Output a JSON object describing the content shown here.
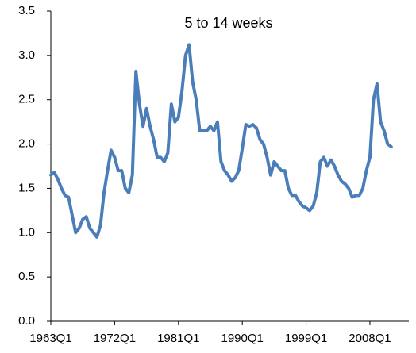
{
  "chart_data": {
    "type": "line",
    "title": "5 to 14 weeks",
    "x": [
      1963,
      1963.5,
      1964,
      1964.5,
      1965,
      1965.5,
      1966,
      1966.5,
      1967,
      1967.5,
      1968,
      1968.5,
      1969,
      1969.5,
      1970,
      1970.5,
      1971,
      1971.5,
      1972,
      1972.5,
      1973,
      1973.5,
      1974,
      1974.5,
      1975,
      1975.5,
      1976,
      1976.5,
      1977,
      1977.5,
      1978,
      1978.5,
      1979,
      1979.5,
      1980,
      1980.5,
      1981,
      1981.5,
      1982,
      1982.5,
      1983,
      1983.5,
      1984,
      1984.5,
      1985,
      1985.5,
      1986,
      1986.5,
      1987,
      1987.5,
      1988,
      1988.5,
      1989,
      1989.5,
      1990,
      1990.5,
      1991,
      1991.5,
      1992,
      1992.5,
      1993,
      1993.5,
      1994,
      1994.5,
      1995,
      1995.5,
      1996,
      1996.5,
      1997,
      1997.5,
      1998,
      1998.5,
      1999,
      1999.5,
      2000,
      2000.5,
      2001,
      2001.5,
      2002,
      2002.5,
      2003,
      2003.5,
      2004,
      2004.5,
      2005,
      2005.5,
      2006,
      2006.5,
      2007,
      2007.5,
      2008,
      2008.5,
      2009,
      2009.5,
      2010,
      2010.5,
      2011
    ],
    "series": [
      {
        "color": "#4a7ebb",
        "values": [
          1.65,
          1.68,
          1.6,
          1.5,
          1.42,
          1.4,
          1.2,
          1.0,
          1.05,
          1.15,
          1.18,
          1.05,
          1.0,
          0.95,
          1.08,
          1.45,
          1.7,
          1.93,
          1.85,
          1.7,
          1.7,
          1.5,
          1.45,
          1.65,
          2.82,
          2.45,
          2.2,
          2.4,
          2.2,
          2.05,
          1.85,
          1.85,
          1.8,
          1.9,
          2.45,
          2.25,
          2.3,
          2.6,
          3.0,
          3.12,
          2.7,
          2.5,
          2.15,
          2.15,
          2.15,
          2.2,
          2.15,
          2.25,
          1.8,
          1.7,
          1.65,
          1.58,
          1.62,
          1.7,
          1.95,
          2.22,
          2.2,
          2.22,
          2.18,
          2.05,
          2.0,
          1.85,
          1.65,
          1.8,
          1.75,
          1.7,
          1.7,
          1.5,
          1.42,
          1.42,
          1.35,
          1.3,
          1.28,
          1.25,
          1.3,
          1.45,
          1.8,
          1.85,
          1.75,
          1.82,
          1.75,
          1.65,
          1.58,
          1.55,
          1.5,
          1.4,
          1.42,
          1.42,
          1.5,
          1.7,
          1.85,
          2.5,
          2.68,
          2.25,
          2.15,
          2.0,
          1.97
        ]
      }
    ],
    "xlim": [
      1963,
      2011.25
    ],
    "xticks": [
      {
        "value": 1963,
        "label": "1963Q1"
      },
      {
        "value": 1972,
        "label": "1972Q1"
      },
      {
        "value": 1981,
        "label": "1981Q1"
      },
      {
        "value": 1990,
        "label": "1990Q1"
      },
      {
        "value": 1999,
        "label": "1999Q1"
      },
      {
        "value": 2008,
        "label": "2008Q1"
      }
    ],
    "ylim": [
      0,
      3.5
    ],
    "yticks": [
      {
        "value": 0,
        "label": "0.0"
      },
      0.5,
      {
        "value": 1,
        "label": "1.0"
      },
      1.5,
      {
        "value": 2,
        "label": "2.0"
      },
      2.5,
      {
        "value": 3,
        "label": "3.0"
      },
      3.5
    ]
  }
}
